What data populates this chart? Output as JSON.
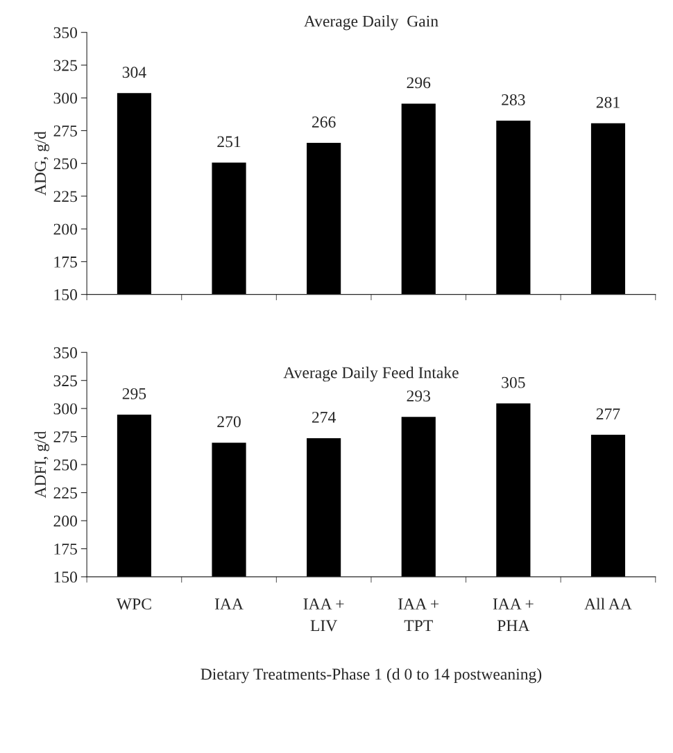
{
  "chart_data": [
    {
      "type": "bar",
      "title": "Average Daily  Gain",
      "ylabel": "ADG, g/d",
      "categories": [
        null,
        null,
        null,
        null,
        null,
        null
      ],
      "values": [
        304,
        251,
        266,
        296,
        283,
        281
      ],
      "color": "#000000",
      "ylim": [
        150,
        350
      ],
      "yticks": [
        150,
        175,
        200,
        225,
        250,
        275,
        300,
        325,
        350
      ],
      "data_labels": true,
      "grid": false,
      "tick_labels": "y"
    },
    {
      "type": "bar",
      "title": "Average Daily Feed Intake",
      "ylabel": "ADFI, g/d",
      "xlabel": "Dietary Treatments-Phase 1 (d 0 to 14 postweaning)",
      "categories": [
        "WPC",
        "IAA",
        "IAA +\nLIV",
        "IAA +\nTPT",
        "IAA +\nPHA",
        "All AA"
      ],
      "values": [
        295,
        270,
        274,
        293,
        305,
        277
      ],
      "color": "#000000",
      "ylim": [
        150,
        350
      ],
      "yticks": [
        150,
        175,
        200,
        225,
        250,
        275,
        300,
        325,
        350
      ],
      "data_labels": true,
      "grid": false
    }
  ]
}
